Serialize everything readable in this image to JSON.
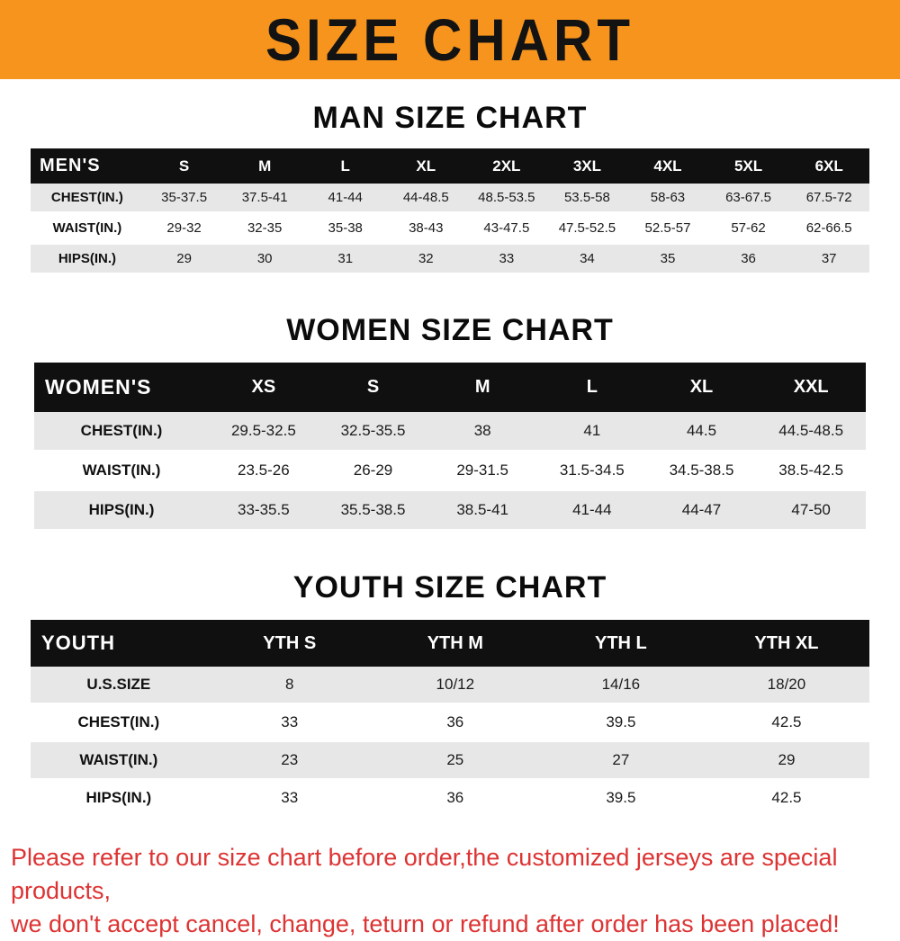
{
  "banner": {
    "title": "SIZE CHART",
    "bg_color": "#f7941d",
    "text_color": "#131313"
  },
  "sections": [
    {
      "heading": "MAN SIZE CHART"
    },
    {
      "heading": "WOMEN SIZE CHART"
    },
    {
      "heading": "YOUTH SIZE CHART"
    }
  ],
  "chart_data": [
    {
      "type": "table",
      "title": "MAN SIZE CHART",
      "header_label": "MEN'S",
      "columns": [
        "S",
        "M",
        "L",
        "XL",
        "2XL",
        "3XL",
        "4XL",
        "5XL",
        "6XL"
      ],
      "rows": [
        {
          "label": "CHEST(IN.)",
          "values": [
            "35-37.5",
            "37.5-41",
            "41-44",
            "44-48.5",
            "48.5-53.5",
            "53.5-58",
            "58-63",
            "63-67.5",
            "67.5-72"
          ]
        },
        {
          "label": "WAIST(IN.)",
          "values": [
            "29-32",
            "32-35",
            "35-38",
            "38-43",
            "43-47.5",
            "47.5-52.5",
            "52.5-57",
            "57-62",
            "62-66.5"
          ]
        },
        {
          "label": "HIPS(IN.)",
          "values": [
            "29",
            "30",
            "31",
            "32",
            "33",
            "34",
            "35",
            "36",
            "37"
          ]
        }
      ]
    },
    {
      "type": "table",
      "title": "WOMEN SIZE CHART",
      "header_label": "WOMEN'S",
      "columns": [
        "XS",
        "S",
        "M",
        "L",
        "XL",
        "XXL"
      ],
      "rows": [
        {
          "label": "CHEST(IN.)",
          "values": [
            "29.5-32.5",
            "32.5-35.5",
            "38",
            "41",
            "44.5",
            "44.5-48.5"
          ]
        },
        {
          "label": "WAIST(IN.)",
          "values": [
            "23.5-26",
            "26-29",
            "29-31.5",
            "31.5-34.5",
            "34.5-38.5",
            "38.5-42.5"
          ]
        },
        {
          "label": "HIPS(IN.)",
          "values": [
            "33-35.5",
            "35.5-38.5",
            "38.5-41",
            "41-44",
            "44-47",
            "47-50"
          ]
        }
      ]
    },
    {
      "type": "table",
      "title": "YOUTH SIZE CHART",
      "header_label": "YOUTH",
      "columns": [
        "YTH S",
        "YTH M",
        "YTH L",
        "YTH XL"
      ],
      "rows": [
        {
          "label": "U.S.SIZE",
          "values": [
            "8",
            "10/12",
            "14/16",
            "18/20"
          ]
        },
        {
          "label": "CHEST(IN.)",
          "values": [
            "33",
            "36",
            "39.5",
            "42.5"
          ]
        },
        {
          "label": "WAIST(IN.)",
          "values": [
            "23",
            "25",
            "27",
            "29"
          ]
        },
        {
          "label": "HIPS(IN.)",
          "values": [
            "33",
            "36",
            "39.5",
            "42.5"
          ]
        }
      ]
    }
  ],
  "footer": {
    "line1": "Please refer to our size chart before order,the customized jerseys are special products,",
    "line2": "we don't accept cancel, change, teturn or refund after order has been placed!",
    "text_color": "#dd3333"
  }
}
